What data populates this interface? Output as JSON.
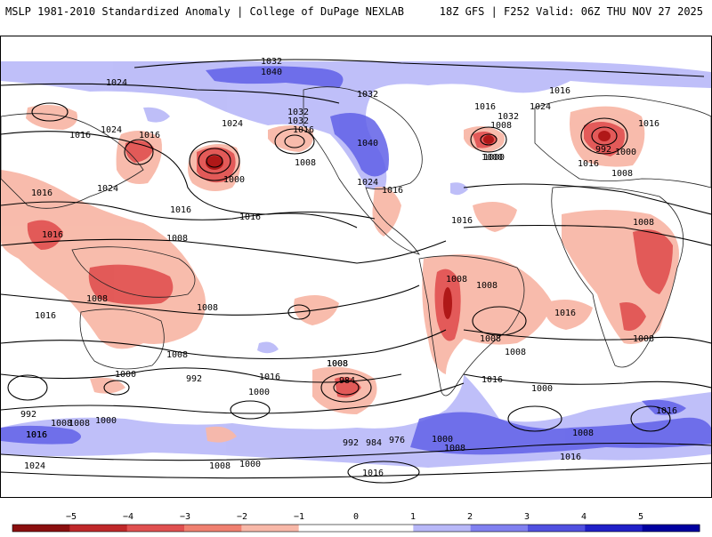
{
  "header": {
    "left_title": "MSLP 1981-2010 Standardized Anomaly | College of DuPage NEXLAB",
    "right_title": "18Z GFS | F252 Valid: 06Z THU NOV 27 2025"
  },
  "map": {
    "projection": "equirectangular-global",
    "field": "MSLP standardized anomaly",
    "contour_labels": [
      {
        "text": "1032"
      },
      {
        "text": "1040"
      },
      {
        "text": "1024"
      },
      {
        "text": "1032"
      },
      {
        "text": "1024"
      },
      {
        "text": "1016"
      },
      {
        "text": "1016"
      },
      {
        "text": "1032"
      },
      {
        "text": "1016"
      },
      {
        "text": "1024"
      },
      {
        "text": "1032"
      },
      {
        "text": "1024"
      },
      {
        "text": "1016"
      },
      {
        "text": "1008"
      },
      {
        "text": "1000"
      },
      {
        "text": "1000"
      },
      {
        "text": "1016"
      },
      {
        "text": "1024"
      },
      {
        "text": "1032"
      },
      {
        "text": "1040"
      },
      {
        "text": "1024"
      },
      {
        "text": "1016"
      },
      {
        "text": "1016"
      },
      {
        "text": "1008"
      },
      {
        "text": "1000"
      },
      {
        "text": "992"
      },
      {
        "text": "1000"
      },
      {
        "text": "1008"
      },
      {
        "text": "1016"
      },
      {
        "text": "1016"
      },
      {
        "text": "1016"
      },
      {
        "text": "1008"
      },
      {
        "text": "1016"
      },
      {
        "text": "1016"
      },
      {
        "text": "1008"
      },
      {
        "text": "1008"
      },
      {
        "text": "1016"
      },
      {
        "text": "1008"
      },
      {
        "text": "1008"
      },
      {
        "text": "1008"
      },
      {
        "text": "1016"
      },
      {
        "text": "1008"
      },
      {
        "text": "1008"
      },
      {
        "text": "1008"
      },
      {
        "text": "1008"
      },
      {
        "text": "1008"
      },
      {
        "text": "1016"
      },
      {
        "text": "1000"
      },
      {
        "text": "992"
      },
      {
        "text": "1000"
      },
      {
        "text": "1008"
      },
      {
        "text": "984"
      },
      {
        "text": "1016"
      },
      {
        "text": "1000"
      },
      {
        "text": "1008"
      },
      {
        "text": "1016"
      },
      {
        "text": "992"
      },
      {
        "text": "1008"
      },
      {
        "text": "1000"
      },
      {
        "text": "1016"
      },
      {
        "text": "1024"
      },
      {
        "text": "992"
      },
      {
        "text": "984"
      },
      {
        "text": "976"
      },
      {
        "text": "1000"
      },
      {
        "text": "1008"
      },
      {
        "text": "1008"
      },
      {
        "text": "1000"
      },
      {
        "text": "1016"
      },
      {
        "text": "1016"
      },
      {
        "text": "1008"
      },
      {
        "text": "1016"
      },
      {
        "text": "1016"
      }
    ]
  },
  "colorbar": {
    "ticks": [
      "−5",
      "−4",
      "−3",
      "−2",
      "−1",
      "0",
      "1",
      "2",
      "3",
      "4",
      "5"
    ],
    "colors": [
      "#8b0f0f",
      "#c0282a",
      "#e05050",
      "#f08070",
      "#f8b8a8",
      "#ffffff",
      "#ffffff",
      "#b8b8f8",
      "#8080f0",
      "#5050e0",
      "#2020c8",
      "#0000a0"
    ]
  }
}
